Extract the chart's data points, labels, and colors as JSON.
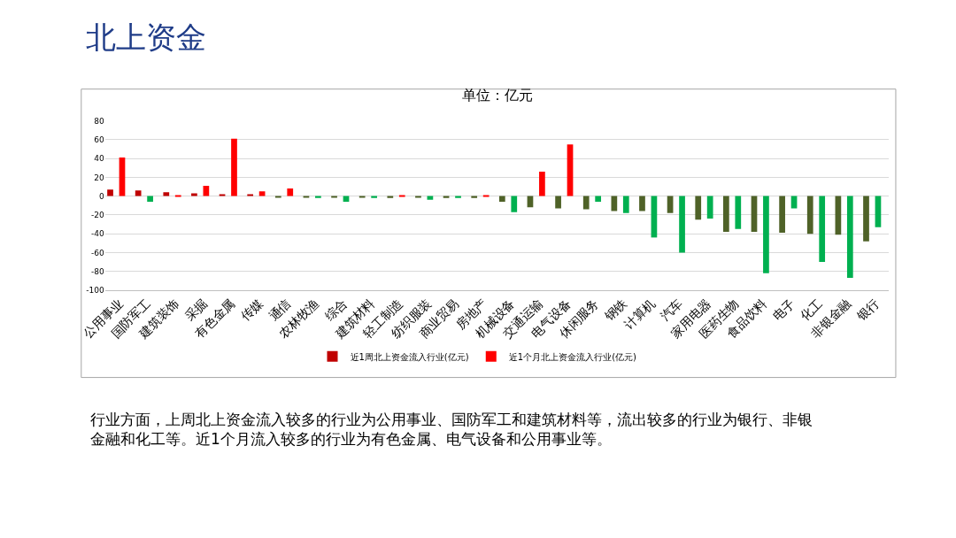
{
  "chart_data": {
    "type": "bar",
    "title": "北上资金",
    "subtitle": "单位：亿元",
    "categories": [
      "公用事业",
      "国防军工",
      "建筑装饰",
      "采掘",
      "有色金属",
      "传媒",
      "通信",
      "农林牧渔",
      "综合",
      "建筑材料",
      "轻工制造",
      "纺织服装",
      "商业贸易",
      "房地产",
      "机械设备",
      "交通运输",
      "电气设备",
      "休闲服务",
      "钢铁",
      "计算机",
      "汽车",
      "家用电器",
      "医药生物",
      "食品饮料",
      "电子",
      "化工",
      "非银金融",
      "银行"
    ],
    "series": [
      {
        "name": "近1周北上资金流入行业(亿元)",
        "color": "#c00000",
        "values": [
          7,
          6,
          4,
          3,
          2,
          2,
          -1,
          -1,
          -1,
          -1,
          -2,
          -1,
          -2,
          -2,
          -6,
          -12,
          -13,
          -14,
          -16,
          -16,
          -18,
          -25,
          -38,
          -38,
          -39,
          -40,
          -41,
          -48
        ],
        "colors": [
          "#c00000",
          "#c00000",
          "#c00000",
          "#c00000",
          "#c00000",
          "#c00000",
          "#4f6228",
          "#4f6228",
          "#4f6228",
          "#4f6228",
          "#4f6228",
          "#4f6228",
          "#4f6228",
          "#4f6228",
          "#4f6228",
          "#4f6228",
          "#4f6228",
          "#4f6228",
          "#4f6228",
          "#4f6228",
          "#4f6228",
          "#4f6228",
          "#4f6228",
          "#4f6228",
          "#4f6228",
          "#4f6228",
          "#4f6228",
          "#4f6228"
        ]
      },
      {
        "name": "近1个月北上资金流入行业(亿元)",
        "color": "#ff0000",
        "values": [
          41,
          -6,
          1,
          11,
          61,
          5,
          8,
          -2,
          -6,
          -2,
          1,
          -4,
          -2,
          1,
          -17,
          26,
          55,
          -6,
          -18,
          -44,
          -60,
          -24,
          -35,
          -82,
          -13,
          -70,
          -87,
          -33
        ],
        "colors": [
          "#ff0000",
          "#00b050",
          "#ff0000",
          "#ff0000",
          "#ff0000",
          "#ff0000",
          "#ff0000",
          "#00b050",
          "#00b050",
          "#00b050",
          "#ff0000",
          "#00b050",
          "#00b050",
          "#ff0000",
          "#00b050",
          "#ff0000",
          "#ff0000",
          "#00b050",
          "#00b050",
          "#00b050",
          "#00b050",
          "#00b050",
          "#00b050",
          "#00b050",
          "#00b050",
          "#00b050",
          "#00b050",
          "#00b050"
        ]
      }
    ],
    "ylim": [
      -100,
      80
    ],
    "yticks": [
      -100,
      -80,
      -60,
      -40,
      -20,
      0,
      20,
      40,
      60,
      80
    ],
    "grid": "y",
    "legend": "bottom",
    "annotations": [
      "行业方面，上周北上资金流入较多的行业为公用事业、国防军工和建筑材料等，流出较多的行业为银行、非银金融和化工等。近1个月流入较多的行业为有色金属、电气设备和公用事业等。"
    ]
  }
}
